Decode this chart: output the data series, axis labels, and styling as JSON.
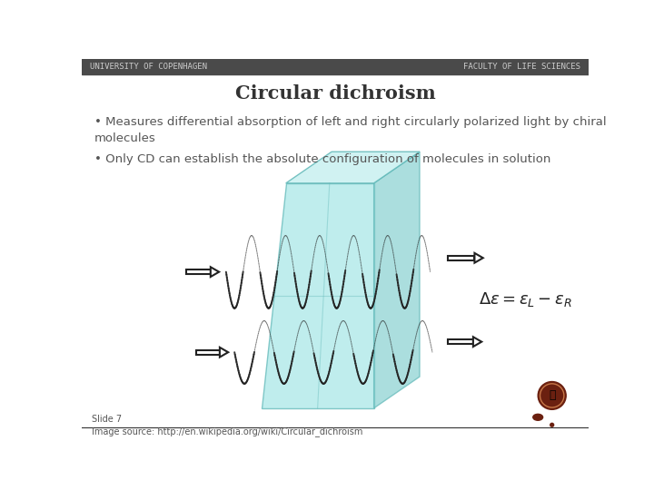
{
  "title": "Circular dichroism",
  "bullet1": "• Measures differential absorption of left and right circularly polarized light by chiral\nmolecules",
  "bullet2": "• Only CD can establish the absolute configuration of molecules in solution",
  "formula": "$\\Delta\\epsilon = \\epsilon_L - \\epsilon_R$",
  "slide_text": "Slide 7",
  "image_source_text": "Image source: http://en.wikipedia.org/wiki/Circular_dichroism",
  "header_bg": "#4a4a4a",
  "header_text_left": "UNIVERSITY OF COPENHAGEN",
  "header_text_right": "FACULTY OF LIFE SCIENCES",
  "header_text_color": "#cccccc",
  "bg_color": "#ffffff",
  "title_color": "#333333",
  "body_color": "#555555",
  "footer_line_color": "#333333",
  "footer_text_color": "#555555",
  "cyan_face": "#aae8e8",
  "cyan_top": "#c8f0f0",
  "cyan_right": "#88d0d0",
  "cyan_edge": "#60b8b8",
  "helix_color": "#222222",
  "arrow_color": "#222222",
  "logo_brown": "#6b2010",
  "logo_dark": "#4a1008"
}
